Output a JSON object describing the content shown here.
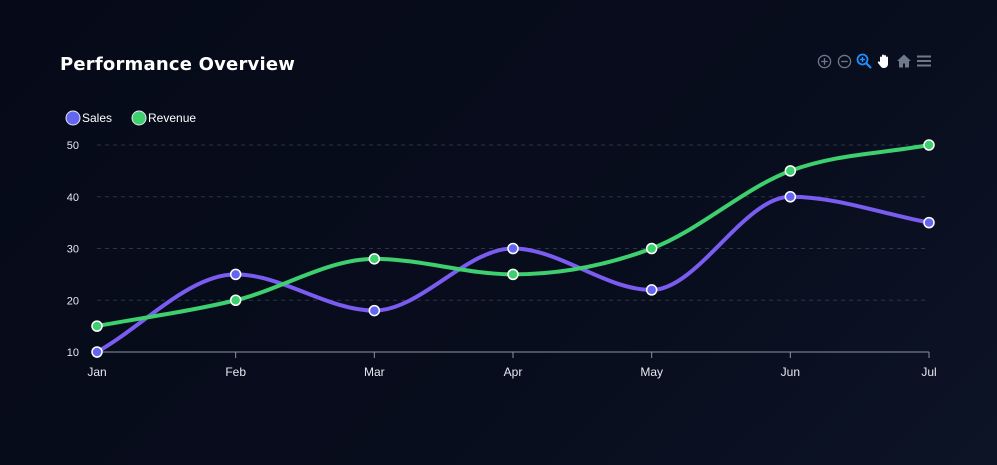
{
  "chart_data": {
    "type": "line",
    "title": "Performance Overview",
    "categories": [
      "Jan",
      "Feb",
      "Mar",
      "Apr",
      "May",
      "Jun",
      "Jul"
    ],
    "series": [
      {
        "name": "Sales",
        "values": [
          10,
          25,
          18,
          30,
          22,
          40,
          35
        ],
        "color": "#6c5ce7"
      },
      {
        "name": "Revenue",
        "values": [
          15,
          20,
          28,
          25,
          30,
          45,
          50
        ],
        "color": "#3ecf6e"
      }
    ],
    "ylim": [
      10,
      50
    ],
    "yticks": [
      10,
      20,
      30,
      40,
      50
    ],
    "grid": true,
    "curve": "smooth",
    "legend": "top-left"
  },
  "toolbar": {
    "icons": [
      "zoom-in-icon",
      "zoom-out-icon",
      "selection-zoom-icon",
      "pan-hand-icon",
      "home-reset-icon",
      "menu-icon"
    ],
    "active_color": "#1e90ff"
  }
}
